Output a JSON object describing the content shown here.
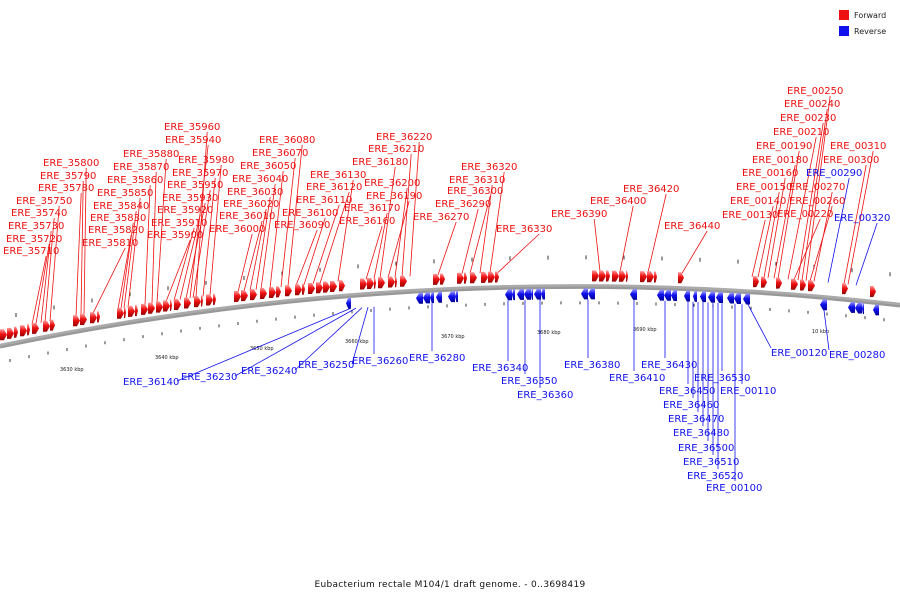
{
  "caption": "Eubacterium rectale M104/1 draft genome. - 0..3698419",
  "legend": [
    {
      "label": "Forward",
      "color": "#ee1111"
    },
    {
      "label": "Reverse",
      "color": "#1111ee"
    }
  ],
  "colors": {
    "forward": "#ee1111",
    "reverse": "#1111ee",
    "backbone": "#777777"
  },
  "scale_labels": [
    "3630 kbp",
    "3640 kbp",
    "3650 kbp",
    "3660 kbp",
    "3670 kbp",
    "3680 kbp",
    "3690 kbp",
    "10 kbp"
  ],
  "forward_genes": [
    "ERE_35710",
    "ERE_35720",
    "ERE_35730",
    "ERE_35740",
    "ERE_35750",
    "ERE_35780",
    "ERE_35790",
    "ERE_35800",
    "ERE_35810",
    "ERE_35820",
    "ERE_35830",
    "ERE_35840",
    "ERE_35850",
    "ERE_35860",
    "ERE_35870",
    "ERE_35880",
    "ERE_35900",
    "ERE_35910",
    "ERE_35920",
    "ERE_35930",
    "ERE_35940",
    "ERE_35950",
    "ERE_35960",
    "ERE_35970",
    "ERE_35980",
    "ERE_36000",
    "ERE_36010",
    "ERE_36020",
    "ERE_36030",
    "ERE_36040",
    "ERE_36050",
    "ERE_36070",
    "ERE_36080",
    "ERE_36090",
    "ERE_36100",
    "ERE_36110",
    "ERE_36120",
    "ERE_36130",
    "ERE_36160",
    "ERE_36170",
    "ERE_36180",
    "ERE_36190",
    "ERE_36200",
    "ERE_36210",
    "ERE_36220",
    "ERE_36270",
    "ERE_36290",
    "ERE_36300",
    "ERE_36310",
    "ERE_36320",
    "ERE_36330",
    "ERE_36390",
    "ERE_36400",
    "ERE_36420",
    "ERE_36440",
    "ERE_00130",
    "ERE_00140",
    "ERE_00150",
    "ERE_00160",
    "ERE_00180",
    "ERE_00190",
    "ERE_00210",
    "ERE_00220",
    "ERE_00230",
    "ERE_00240",
    "ERE_00250",
    "ERE_00260",
    "ERE_00270",
    "ERE_00300",
    "ERE_00310"
  ],
  "reverse_genes": [
    "ERE_36140",
    "ERE_36230",
    "ERE_36240",
    "ERE_36250",
    "ERE_36260",
    "ERE_36280",
    "ERE_36340",
    "ERE_36350",
    "ERE_36360",
    "ERE_36380",
    "ERE_36410",
    "ERE_36430",
    "ERE_36450",
    "ERE_36460",
    "ERE_36470",
    "ERE_36480",
    "ERE_36500",
    "ERE_36510",
    "ERE_36520",
    "ERE_36530",
    "ERE_00100",
    "ERE_00110",
    "ERE_00120",
    "ERE_00280",
    "ERE_00290",
    "ERE_00320"
  ]
}
